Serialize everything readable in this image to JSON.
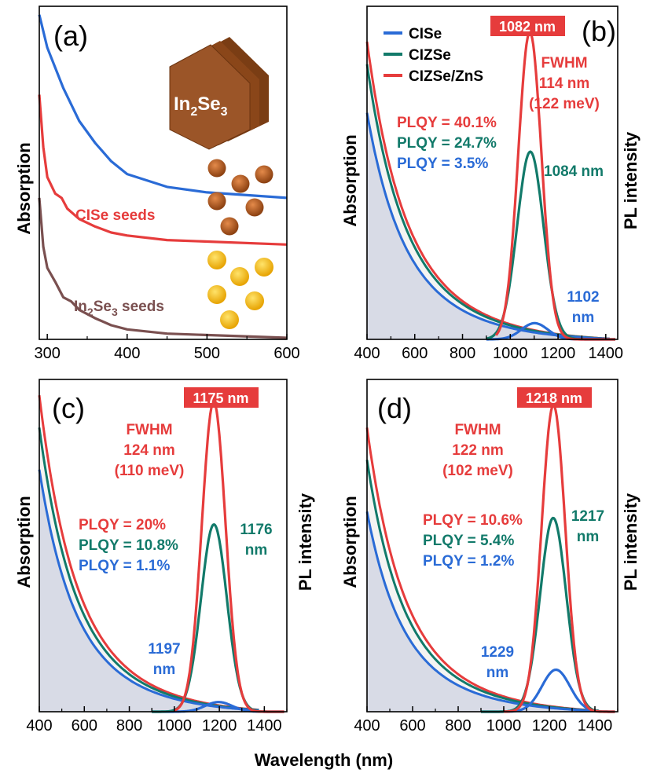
{
  "figure": {
    "xlabel": "Wavelength (nm)",
    "colors": {
      "cise": "#2a6bd6",
      "cizse": "#127a6a",
      "shell": "#e63c3c",
      "in2se3": "#7a5050",
      "shade": "#c9cede",
      "crystal": "#9b5528",
      "dot_brown": "#a8531c",
      "dot_yellow": "#f7c21a",
      "peak_box": "#e63c3c"
    }
  },
  "chart_data": [
    {
      "panel": "a",
      "type": "line",
      "label": "(a)",
      "ylabel": "Absorption",
      "xlim": [
        290,
        600
      ],
      "xticks": [
        300,
        400,
        500,
        600
      ],
      "series": [
        {
          "key": "cise",
          "curve": [
            [
              290,
              1.0
            ],
            [
              300,
              0.82
            ],
            [
              320,
              0.6
            ],
            [
              340,
              0.42
            ],
            [
              360,
              0.3
            ],
            [
              380,
              0.2
            ],
            [
              400,
              0.13
            ],
            [
              450,
              0.06
            ],
            [
              500,
              0.03
            ],
            [
              600,
              0.0
            ]
          ]
        },
        {
          "key": "shell",
          "name": "CISe seeds",
          "curve": [
            [
              290,
              1.0
            ],
            [
              295,
              0.65
            ],
            [
              300,
              0.45
            ],
            [
              310,
              0.34
            ],
            [
              318,
              0.31
            ],
            [
              325,
              0.24
            ],
            [
              340,
              0.17
            ],
            [
              360,
              0.12
            ],
            [
              380,
              0.08
            ],
            [
              400,
              0.06
            ],
            [
              450,
              0.03
            ],
            [
              600,
              0.0
            ]
          ]
        },
        {
          "key": "in2se3",
          "name": "In2Se3 seeds",
          "curve": [
            [
              290,
              1.0
            ],
            [
              295,
              0.65
            ],
            [
              300,
              0.5
            ],
            [
              310,
              0.4
            ],
            [
              320,
              0.29
            ],
            [
              330,
              0.26
            ],
            [
              340,
              0.2
            ],
            [
              360,
              0.14
            ],
            [
              380,
              0.09
            ],
            [
              400,
              0.06
            ],
            [
              450,
              0.03
            ],
            [
              600,
              0.0
            ]
          ]
        }
      ],
      "labels": {
        "cise_seeds": "CISe seeds",
        "in2se3_seeds_main": "In",
        "in2se3_seeds_sub1": "2",
        "in2se3_seeds_mid": "Se",
        "in2se3_seeds_sub2": "3",
        "in2se3_seeds_tail": " seeds",
        "crystal_main": "In",
        "crystal_sub1": "2",
        "crystal_mid": "Se",
        "crystal_sub2": "3"
      }
    },
    {
      "panel": "b",
      "type": "line",
      "label": "(b)",
      "ylabel_left": "Absorption",
      "ylabel_right": "PL intensity",
      "xlim": [
        400,
        1450
      ],
      "xticks": [
        400,
        600,
        800,
        1000,
        1200,
        1400
      ],
      "legend": [
        "CISe",
        "CIZSe",
        "CIZSe/ZnS"
      ],
      "peak_label": "1082 nm",
      "fwhm": [
        "FWHM",
        "114 nm",
        "(122 meV)"
      ],
      "plqy": [
        "PLQY = 40.1%",
        "PLQY = 24.7%",
        "PLQY = 3.5%"
      ],
      "annotations": {
        "cizse_peak": "1084 nm",
        "cise_peak_1": "1102",
        "cise_peak_2": "nm"
      },
      "absorption_scale": {
        "cise": 0.7,
        "cizse": 0.85,
        "shell": 0.92
      },
      "pl": [
        {
          "key": "shell",
          "center": 1082,
          "fwhm": 114,
          "height": 0.95,
          "x0": 940,
          "x1": 1440
        },
        {
          "key": "cizse",
          "center": 1084,
          "fwhm": 130,
          "height": 0.58,
          "x0": 900,
          "x1": 1440
        },
        {
          "key": "cise",
          "center": 1102,
          "fwhm": 130,
          "height": 0.05,
          "x0": 900,
          "x1": 1440
        }
      ]
    },
    {
      "panel": "c",
      "type": "line",
      "label": "(c)",
      "ylabel_left": "Absorption",
      "ylabel_right": "PL intensity",
      "xlim": [
        400,
        1500
      ],
      "xticks": [
        400,
        600,
        800,
        1000,
        1200,
        1400
      ],
      "peak_label": "1175 nm",
      "fwhm": [
        "FWHM",
        "124 nm",
        "(110 meV)"
      ],
      "plqy": [
        "PLQY = 20%",
        "PLQY = 10.8%",
        "PLQY = 1.1%"
      ],
      "annotations": {
        "cizse_peak_1": "1176",
        "cizse_peak_2": "nm",
        "cise_peak_1": "1197",
        "cise_peak_2": "nm"
      },
      "absorption_scale": {
        "cise": 0.75,
        "cizse": 0.88,
        "shell": 0.98
      },
      "pl": [
        {
          "key": "shell",
          "center": 1175,
          "fwhm": 124,
          "height": 0.96,
          "x0": 1000,
          "x1": 1490
        },
        {
          "key": "cizse",
          "center": 1176,
          "fwhm": 135,
          "height": 0.58,
          "x0": 900,
          "x1": 1490
        },
        {
          "key": "cise",
          "center": 1197,
          "fwhm": 140,
          "height": 0.03,
          "x0": 900,
          "x1": 1490
        }
      ]
    },
    {
      "panel": "d",
      "type": "line",
      "label": "(d)",
      "ylabel_left": "Absorption",
      "ylabel_right": "PL intensity",
      "xlim": [
        400,
        1500
      ],
      "xticks": [
        400,
        600,
        800,
        1000,
        1200,
        1400
      ],
      "peak_label": "1218 nm",
      "fwhm": [
        "FWHM",
        "122 nm",
        "(102 meV)"
      ],
      "plqy": [
        "PLQY = 10.6%",
        "PLQY = 5.4%",
        "PLQY = 1.2%"
      ],
      "annotations": {
        "cizse_peak_1": "1217",
        "cizse_peak_2": "nm",
        "cise_peak_1": "1229",
        "cise_peak_2": "nm"
      },
      "absorption_scale": {
        "cise": 0.62,
        "cizse": 0.78,
        "shell": 0.88
      },
      "pl": [
        {
          "key": "shell",
          "center": 1218,
          "fwhm": 122,
          "height": 0.95,
          "x0": 1000,
          "x1": 1490
        },
        {
          "key": "cizse",
          "center": 1217,
          "fwhm": 135,
          "height": 0.6,
          "x0": 900,
          "x1": 1490
        },
        {
          "key": "cise",
          "center": 1229,
          "fwhm": 145,
          "height": 0.13,
          "x0": 900,
          "x1": 1490
        }
      ]
    }
  ]
}
